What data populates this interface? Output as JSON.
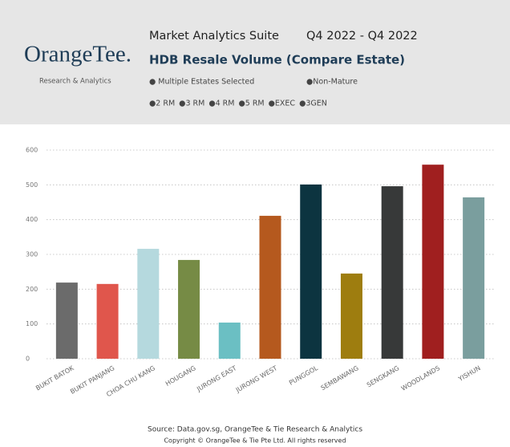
{
  "header": {
    "brand": "OrangeTee.",
    "brand_sub": "Research & Analytics",
    "suite": "Market Analytics Suite",
    "period": "Q4 2022 - Q4 2022",
    "estates": "● Multiple Estates Selected",
    "maturity": "●Non-Mature",
    "flat_types": [
      "●2 RM",
      "●3 RM",
      "●4 RM",
      "●5 RM",
      "●EXEC",
      "●3GEN"
    ]
  },
  "chart_data": {
    "type": "bar",
    "title": "HDB Resale Volume (Compare Estate)",
    "categories": [
      "BUKIT BATOK",
      "BUKIT PANJANG",
      "CHOA CHU KANG",
      "HOUGANG",
      "JURONG EAST",
      "JURONG WEST",
      "PUNGGOL",
      "SEMBAWANG",
      "SENGKANG",
      "WOODLANDS",
      "YISHUN"
    ],
    "values": [
      219,
      215,
      316,
      284,
      104,
      411,
      501,
      245,
      496,
      558,
      464
    ],
    "colors": [
      "#6b6b6b",
      "#e0564c",
      "#b5d9de",
      "#768b45",
      "#6bbfc3",
      "#b5591e",
      "#0c3440",
      "#9e7d0f",
      "#373939",
      "#a01f1f",
      "#7a9e9e"
    ],
    "ylim": [
      0,
      600
    ],
    "yticks": [
      0,
      100,
      200,
      300,
      400,
      500,
      600
    ],
    "grid": true
  },
  "footer": {
    "source": "Source: Data.gov.sg, OrangeTee & Tie Research & Analytics",
    "copyright": "Copyright © OrangeTee & Tie Pte Ltd. All rights reserved"
  }
}
